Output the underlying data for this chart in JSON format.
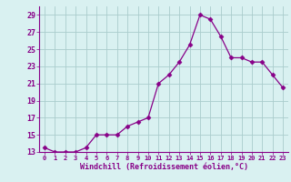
{
  "x": [
    0,
    1,
    2,
    3,
    4,
    5,
    6,
    7,
    8,
    9,
    10,
    11,
    12,
    13,
    14,
    15,
    16,
    17,
    18,
    19,
    20,
    21,
    22,
    23
  ],
  "y": [
    13.5,
    13.0,
    13.0,
    13.0,
    13.5,
    15.0,
    15.0,
    15.0,
    16.0,
    16.5,
    17.0,
    21.0,
    22.0,
    23.5,
    25.5,
    29.0,
    28.5,
    26.5,
    24.0,
    24.0,
    23.5,
    23.5,
    22.0,
    20.5
  ],
  "line_color": "#880088",
  "marker": "D",
  "marker_size": 2.5,
  "bg_color": "#d9f1f1",
  "grid_color": "#aacccc",
  "xlabel": "Windchill (Refroidissement éolien,°C)",
  "xlabel_color": "#880088",
  "tick_color": "#880088",
  "ylim": [
    13,
    30
  ],
  "yticks": [
    13,
    15,
    17,
    19,
    21,
    23,
    25,
    27,
    29
  ],
  "xtick_labels": [
    "0",
    "1",
    "2",
    "3",
    "4",
    "5",
    "6",
    "7",
    "8",
    "9",
    "10",
    "11",
    "12",
    "13",
    "14",
    "15",
    "16",
    "17",
    "18",
    "19",
    "20",
    "21",
    "22",
    "23"
  ],
  "xlim": [
    -0.5,
    23.5
  ]
}
